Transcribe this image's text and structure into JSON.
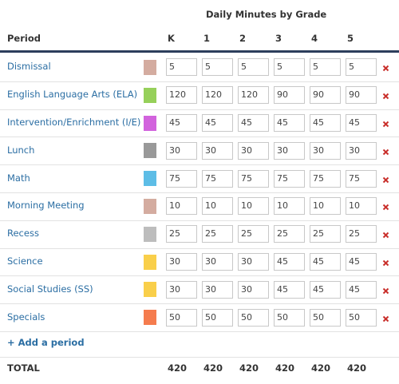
{
  "header": {
    "group_title": "Daily Minutes by Grade",
    "period_label": "Period",
    "grades": [
      "K",
      "1",
      "2",
      "3",
      "4",
      "5"
    ]
  },
  "rows": [
    {
      "name": "Dismissal",
      "color": "#d4aca0",
      "values": [
        5,
        5,
        5,
        5,
        5,
        5
      ]
    },
    {
      "name": "English Language Arts (ELA)",
      "color": "#96d05a",
      "values": [
        120,
        120,
        120,
        90,
        90,
        90
      ]
    },
    {
      "name": "Intervention/Enrichment (I/E)",
      "color": "#d263dd",
      "values": [
        45,
        45,
        45,
        45,
        45,
        45
      ]
    },
    {
      "name": "Lunch",
      "color": "#999999",
      "values": [
        30,
        30,
        30,
        30,
        30,
        30
      ]
    },
    {
      "name": "Math",
      "color": "#5dbde6",
      "values": [
        75,
        75,
        75,
        75,
        75,
        75
      ]
    },
    {
      "name": "Morning Meeting",
      "color": "#d4aca0",
      "values": [
        10,
        10,
        10,
        10,
        10,
        10
      ]
    },
    {
      "name": "Recess",
      "color": "#bdbdbd",
      "values": [
        25,
        25,
        25,
        25,
        25,
        25
      ]
    },
    {
      "name": "Science",
      "color": "#f9cf4a",
      "values": [
        30,
        30,
        30,
        45,
        45,
        45
      ]
    },
    {
      "name": "Social Studies (SS)",
      "color": "#f9cf4a",
      "values": [
        30,
        30,
        30,
        45,
        45,
        45
      ]
    },
    {
      "name": "Specials",
      "color": "#f57c4e",
      "values": [
        50,
        50,
        50,
        50,
        50,
        50
      ]
    }
  ],
  "add_link": "+ Add a period",
  "total": {
    "label": "TOTAL",
    "values": [
      420,
      420,
      420,
      420,
      420,
      420
    ]
  }
}
